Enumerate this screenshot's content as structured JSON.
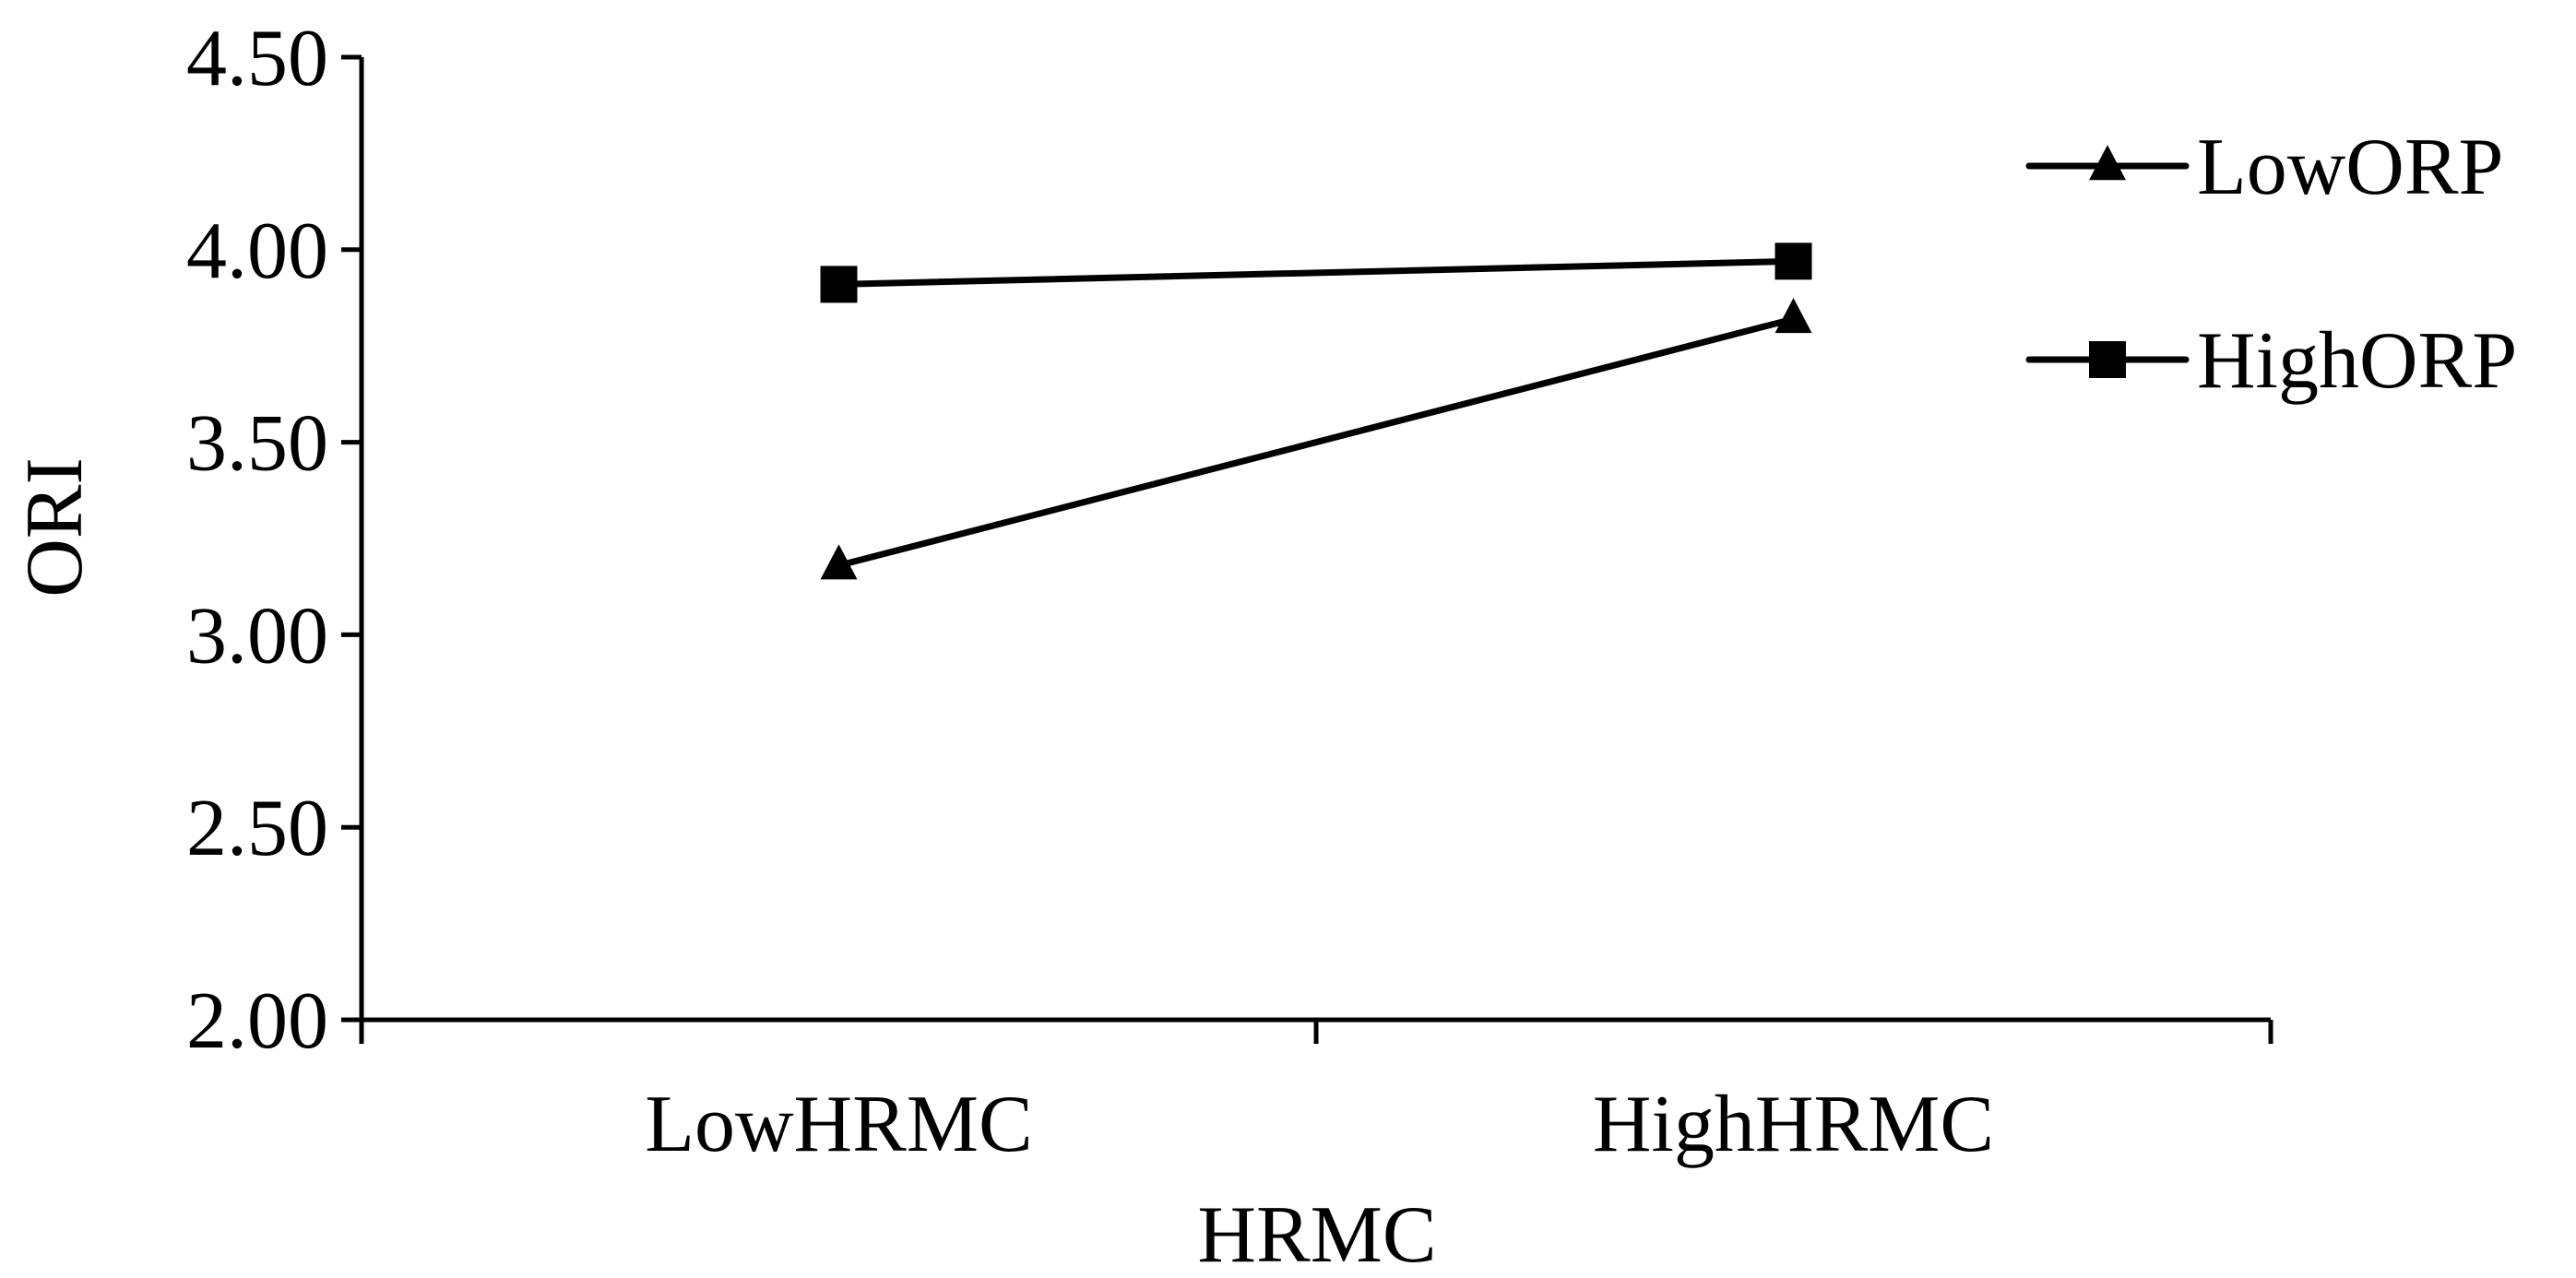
{
  "chart_data": {
    "type": "line",
    "title": "",
    "xlabel": "HRMC",
    "ylabel": "ORI",
    "categories": [
      "LowHRMC",
      "HighHRMC"
    ],
    "ylim": [
      2.0,
      4.5
    ],
    "yticks": [
      "2.00",
      "2.50",
      "3.00",
      "3.50",
      "4.00",
      "4.50"
    ],
    "grid": false,
    "legend_position": "top-right",
    "series": [
      {
        "name": "LowORP",
        "marker": "triangle",
        "values": [
          3.18,
          3.82
        ]
      },
      {
        "name": "HighORP",
        "marker": "square",
        "values": [
          3.91,
          3.97
        ]
      }
    ],
    "colors": {
      "line": "#000000",
      "background": "#ffffff"
    }
  }
}
